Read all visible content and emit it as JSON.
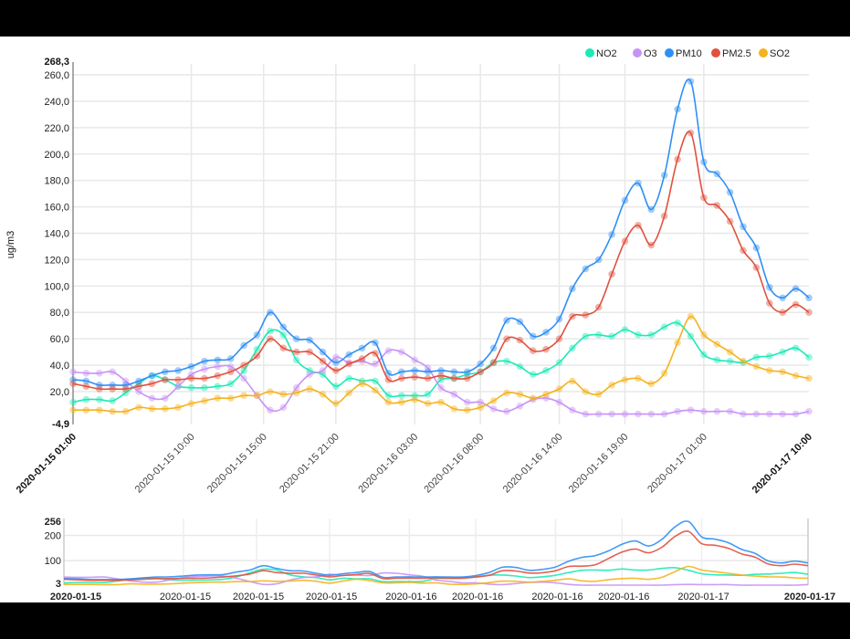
{
  "chart_data": {
    "type": "line",
    "title": "",
    "xlabel": "",
    "ylabel": "ug/m3",
    "ylim": [
      -4.9,
      268.3
    ],
    "y_extent_labels": [
      "268,3",
      "-4,9"
    ],
    "y_ticks": [
      "20,0",
      "40,0",
      "60,0",
      "80,0",
      "100,0",
      "120,0",
      "140,0",
      "160,0",
      "180,0",
      "200,0",
      "220,0",
      "240,0",
      "260,0"
    ],
    "y_tick_values": [
      20,
      40,
      60,
      80,
      100,
      120,
      140,
      160,
      180,
      200,
      220,
      240,
      260
    ],
    "x_tick_labels": [
      "2020-01-15 01:00",
      "2020-01-15 10:00",
      "2020-01-15 15:00",
      "2020-01-15 21:00",
      "2020-01-16 03:00",
      "2020-01-16 08:00",
      "2020-01-16 14:00",
      "2020-01-16 19:00",
      "2020-01-17 01:00",
      "2020-01-17 10:00"
    ],
    "x_tick_index": [
      0,
      9,
      14.5,
      20,
      26,
      31,
      37,
      42,
      48,
      56
    ],
    "grid": true,
    "legend_position": "top-right",
    "series": [
      {
        "name": "NO2",
        "color": "#1de9b6",
        "values": [
          12,
          14,
          14,
          13,
          19,
          26,
          32,
          29,
          24,
          23,
          23,
          24,
          26,
          36,
          52,
          66,
          63,
          44,
          36,
          33,
          24,
          30,
          28,
          28,
          17,
          17,
          17,
          18,
          29,
          30,
          33,
          35,
          42,
          43,
          39,
          33,
          36,
          42,
          53,
          62,
          63,
          62,
          67,
          63,
          63,
          69,
          72,
          62,
          48,
          44,
          43,
          42,
          46,
          47,
          50,
          53,
          46
        ]
      },
      {
        "name": "O3",
        "color": "#c792f7",
        "values": [
          35,
          34,
          34,
          35,
          28,
          20,
          15,
          15,
          24,
          33,
          37,
          39,
          39,
          30,
          17,
          6,
          8,
          23,
          33,
          36,
          46,
          42,
          43,
          41,
          51,
          50,
          44,
          38,
          23,
          18,
          12,
          12,
          7,
          5,
          9,
          14,
          15,
          12,
          6,
          3,
          3,
          3,
          3,
          3,
          3,
          3,
          5,
          6,
          5,
          5,
          5,
          3,
          3,
          3,
          3,
          3,
          5
        ]
      },
      {
        "name": "PM10",
        "color": "#2f8ff5",
        "values": [
          29,
          28,
          25,
          25,
          25,
          28,
          32,
          35,
          36,
          39,
          43,
          44,
          45,
          55,
          63,
          80,
          69,
          60,
          59,
          50,
          42,
          48,
          53,
          57,
          34,
          35,
          36,
          35,
          36,
          35,
          35,
          41,
          53,
          74,
          73,
          62,
          65,
          75,
          98,
          113,
          120,
          139,
          165,
          178,
          158,
          184,
          234,
          255,
          194,
          185,
          171,
          145,
          129,
          99,
          91,
          98,
          91
        ]
      },
      {
        "name": "PM2.5",
        "color": "#e0513f",
        "values": [
          26,
          24,
          22,
          22,
          22,
          24,
          26,
          29,
          29,
          30,
          30,
          32,
          35,
          40,
          47,
          60,
          53,
          50,
          50,
          43,
          36,
          41,
          45,
          49,
          29,
          30,
          31,
          30,
          32,
          30,
          30,
          35,
          42,
          60,
          59,
          51,
          52,
          60,
          77,
          78,
          84,
          109,
          134,
          146,
          131,
          153,
          196,
          216,
          167,
          161,
          149,
          127,
          114,
          87,
          80,
          86,
          80
        ]
      },
      {
        "name": "SO2",
        "color": "#f5b21c",
        "values": [
          6,
          6,
          6,
          5,
          5,
          8,
          7,
          7,
          8,
          11,
          13,
          15,
          15,
          17,
          17,
          20,
          18,
          19,
          22,
          18,
          11,
          19,
          26,
          21,
          12,
          12,
          14,
          11,
          12,
          7,
          6,
          8,
          13,
          19,
          18,
          15,
          18,
          22,
          28,
          20,
          18,
          25,
          29,
          30,
          26,
          34,
          57,
          77,
          63,
          56,
          50,
          43,
          39,
          36,
          35,
          32,
          30
        ]
      }
    ],
    "navigator": {
      "ylim": [
        3,
        256
      ],
      "y_ticks": [
        "256",
        "200",
        "100",
        "3"
      ],
      "y_tick_values": [
        256,
        200,
        100,
        3
      ],
      "x_tick_labels": [
        "2020-01-15",
        "2020-01-15",
        "2020-01-15",
        "2020-01-15",
        "2020-01-16",
        "2020-01-16",
        "2020-01-16",
        "2020-01-16",
        "2020-01-17",
        "2020-01-17"
      ]
    }
  }
}
